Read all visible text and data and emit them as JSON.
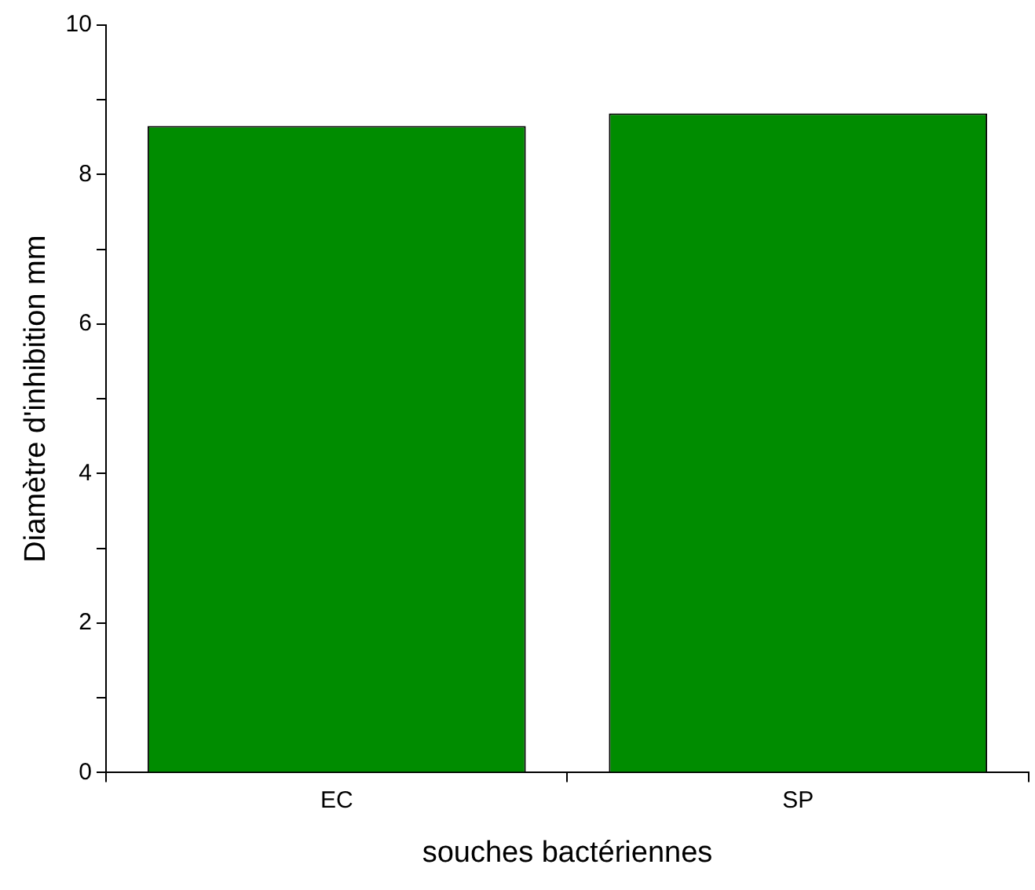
{
  "chart_data": {
    "type": "bar",
    "xlabel": "souches bactériennes",
    "ylabel": "Diamètre d'inhibition mm",
    "categories": [
      "EC",
      "SP"
    ],
    "values": [
      8.65,
      8.82
    ],
    "color": "#008c00",
    "ylim": [
      0,
      10
    ],
    "yticks": [
      0,
      {
        "value": 1,
        "label": null
      },
      2,
      {
        "value": 3,
        "label": null
      },
      4,
      {
        "value": 5,
        "label": null
      },
      6,
      {
        "value": 7,
        "label": null
      },
      8,
      {
        "value": 9,
        "label": null
      },
      10
    ],
    "grid": false,
    "legend": false
  }
}
